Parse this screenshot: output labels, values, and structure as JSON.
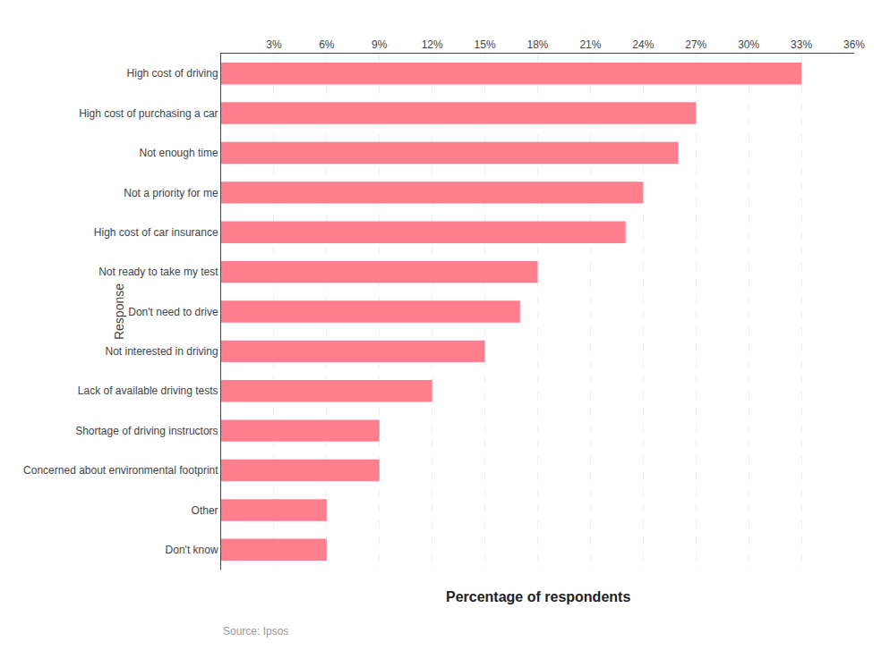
{
  "chart_data": {
    "type": "bar",
    "orientation": "horizontal",
    "categories": [
      "Don't know",
      "Other",
      "Concerned about environmental footprint",
      "Shortage of driving instructors",
      "Lack of available driving tests",
      "Not interested in driving",
      "Don't need to drive",
      "Not ready to take my test",
      "High cost of car insurance",
      "Not a priority for me",
      "Not enough time",
      "High cost of purchasing a car",
      "High cost of driving"
    ],
    "values": [
      6,
      6,
      9,
      9,
      12,
      15,
      17,
      18,
      23,
      24,
      26,
      27,
      33
    ],
    "color": "#FF7F8F",
    "xlabel": "Percentage of respondents",
    "ylabel": "Response",
    "xlim": [
      0,
      36
    ],
    "xticks": [
      {
        "value": 3,
        "label": "3%"
      },
      {
        "value": 6,
        "label": "6%"
      },
      {
        "value": 9,
        "label": "9%"
      },
      {
        "value": 12,
        "label": "12%"
      },
      {
        "value": 15,
        "label": "15%"
      },
      {
        "value": 18,
        "label": "18%"
      },
      {
        "value": 21,
        "label": "21%"
      },
      {
        "value": 24,
        "label": "24%"
      },
      {
        "value": 27,
        "label": "27%"
      },
      {
        "value": 30,
        "label": "30%"
      },
      {
        "value": 33,
        "label": "33%"
      },
      {
        "value": 36,
        "label": "36%"
      }
    ],
    "annotations": [
      "Source: Ipsos"
    ],
    "grid": true
  }
}
